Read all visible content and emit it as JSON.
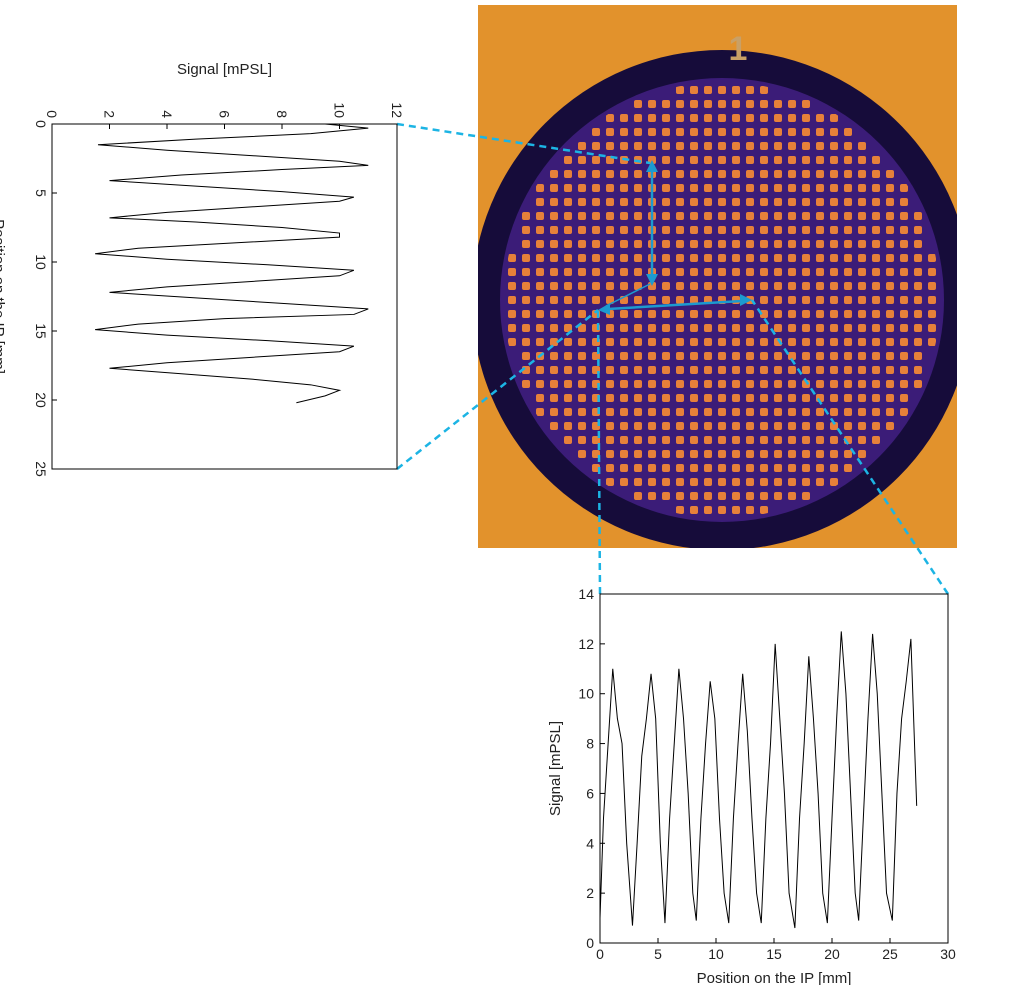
{
  "image": {
    "label": "1"
  },
  "chart_data": [
    {
      "type": "line",
      "xlabel": "Position on the IP [mm]",
      "ylabel": "Signal [mPSL]",
      "color": "#000000",
      "x": [
        0,
        0.3,
        0.7,
        1.1,
        1.5,
        1.9,
        2.3,
        2.7,
        3.0,
        3.3,
        3.7,
        4.1,
        4.5,
        4.9,
        5.3,
        5.6,
        6.0,
        6.4,
        6.8,
        7.1,
        7.5,
        7.9,
        8.2,
        8.6,
        9.0,
        9.4,
        9.8,
        10.2,
        10.6,
        11.0,
        11.4,
        11.8,
        12.2,
        12.6,
        13.0,
        13.4,
        13.8,
        14.1,
        14.5,
        14.9,
        15.3,
        15.7,
        16.1,
        16.5,
        16.9,
        17.3,
        17.7,
        18.1,
        18.5,
        18.9,
        19.3,
        19.7,
        20.2
      ],
      "values": [
        9.5,
        11,
        9,
        5,
        1.6,
        4,
        7,
        10,
        11,
        8,
        4.5,
        2,
        5,
        8,
        10.5,
        10,
        7,
        4,
        2,
        5,
        8,
        10,
        10,
        6.5,
        3,
        1.5,
        4,
        7.5,
        10.5,
        10,
        7,
        4,
        2,
        5,
        8,
        11,
        10.5,
        6,
        3,
        1.5,
        4,
        7.5,
        10.5,
        10,
        7,
        4,
        2,
        4.5,
        7,
        9,
        10,
        9.5,
        8.5
      ],
      "xlim": [
        0,
        25
      ],
      "xticks": [
        0,
        5,
        10,
        15,
        20,
        25
      ],
      "ylim": [
        0,
        12
      ],
      "yticks": [
        0,
        2,
        4,
        6,
        8,
        10,
        12
      ]
    },
    {
      "type": "line",
      "xlabel": "Position on the IP [mm]",
      "ylabel": "Signal [mPSL]",
      "color": "#000000",
      "x": [
        0,
        0.3,
        0.7,
        1.1,
        1.5,
        1.9,
        2.3,
        2.8,
        3.2,
        3.6,
        4.0,
        4.4,
        4.8,
        5.2,
        5.6,
        6.0,
        6.4,
        6.8,
        7.2,
        7.6,
        8.0,
        8.3,
        8.7,
        9.1,
        9.5,
        9.9,
        10.3,
        10.7,
        11.1,
        11.5,
        11.9,
        12.3,
        12.7,
        13.1,
        13.5,
        13.9,
        14.3,
        14.7,
        15.1,
        15.5,
        15.9,
        16.3,
        16.8,
        17.2,
        17.6,
        18.0,
        18.4,
        18.8,
        19.2,
        19.6,
        20.0,
        20.4,
        20.8,
        21.2,
        21.6,
        22.0,
        22.3,
        22.7,
        23.1,
        23.5,
        23.9,
        24.3,
        24.7,
        25.2,
        25.6,
        26.0,
        26.4,
        26.8,
        27.3
      ],
      "values": [
        1,
        5,
        8,
        11,
        9,
        8,
        4,
        0.7,
        4,
        7.5,
        9,
        10.8,
        9,
        4,
        0.8,
        5,
        8,
        11,
        9,
        6,
        2,
        0.9,
        5,
        8,
        10.5,
        9,
        5,
        2,
        0.8,
        5,
        8,
        10.8,
        8.5,
        5,
        2,
        0.8,
        5,
        8,
        12,
        9,
        6,
        2,
        0.6,
        5,
        8,
        11.5,
        9,
        6,
        2,
        0.8,
        5,
        9,
        12.5,
        10,
        6,
        2,
        0.9,
        5,
        9,
        12.4,
        10,
        6,
        2,
        0.9,
        6,
        9,
        10.5,
        12.2,
        5.5
      ],
      "xlim": [
        0,
        30
      ],
      "xticks": [
        0,
        5,
        10,
        15,
        20,
        25,
        30
      ],
      "ylim": [
        0,
        14
      ],
      "yticks": [
        0,
        2,
        4,
        6,
        8,
        10,
        12,
        14
      ]
    }
  ]
}
